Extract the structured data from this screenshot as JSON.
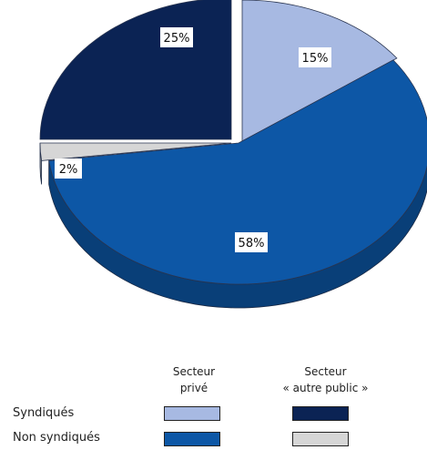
{
  "chart_data": {
    "type": "pie",
    "slices": [
      {
        "label": "15%",
        "value": 15,
        "color": "#a7b9e2"
      },
      {
        "label": "58%",
        "value": 58,
        "color": "#0d57a6"
      },
      {
        "label": "2%",
        "value": 2,
        "color": "#d6d6d6"
      },
      {
        "label": "25%",
        "value": 25,
        "color": "#0b2354"
      }
    ],
    "legend": {
      "columns": [
        {
          "line1": "Secteur",
          "line2": "privé"
        },
        {
          "line1": "Secteur",
          "line2": "« autre public »"
        }
      ],
      "rows": [
        {
          "label": "Syndiqués",
          "colors": [
            "#a7b9e2",
            "#0b2354"
          ]
        },
        {
          "label": "Non syndiqués",
          "colors": [
            "#0d57a6",
            "#d6d6d6"
          ]
        }
      ]
    }
  }
}
